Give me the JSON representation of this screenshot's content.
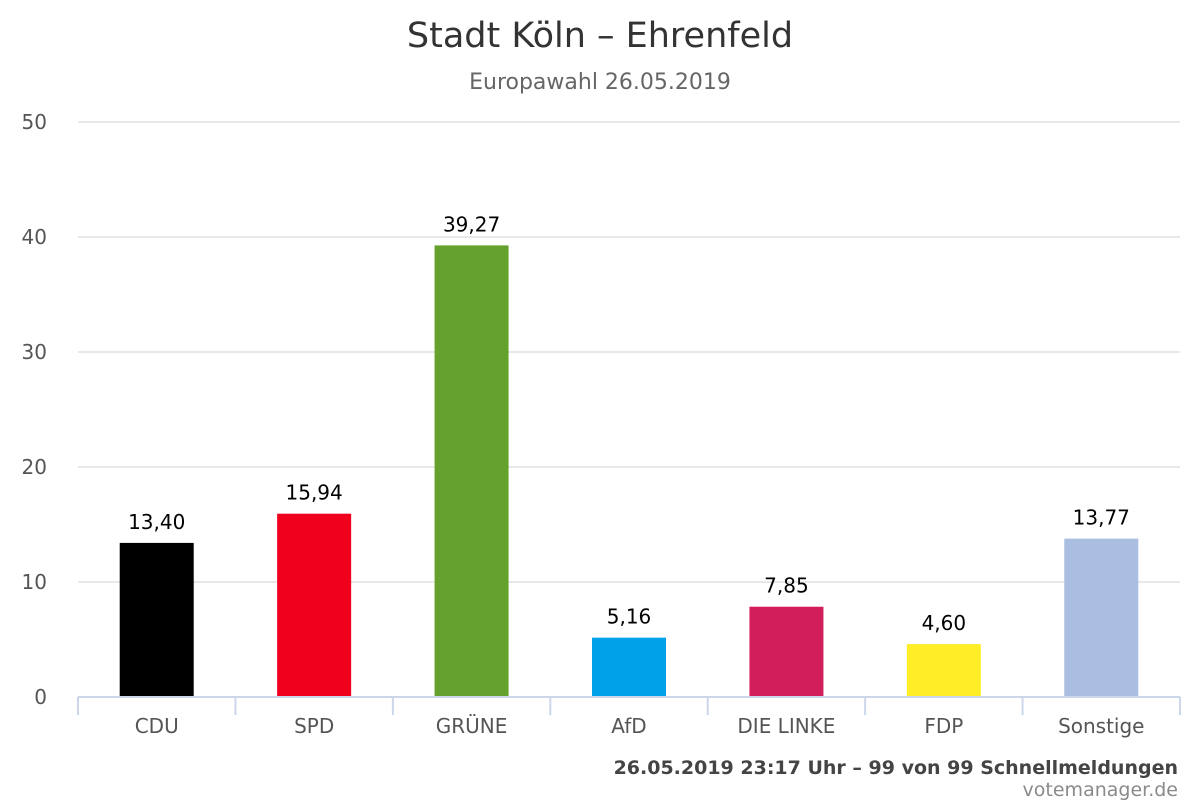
{
  "chart_data": {
    "type": "bar",
    "title": "Stadt Köln – Ehrenfeld",
    "subtitle": "Europawahl 26.05.2019",
    "categories": [
      "CDU",
      "SPD",
      "GRÜNE",
      "AfD",
      "DIE LINKE",
      "FDP",
      "Sonstige"
    ],
    "values": [
      13.4,
      15.94,
      39.27,
      5.16,
      7.85,
      4.6,
      13.77
    ],
    "value_labels": [
      "13,40",
      "15,94",
      "39,27",
      "5,16",
      "7,85",
      "4,60",
      "13,77"
    ],
    "colors": [
      "#000000",
      "#f0001c",
      "#64a12d",
      "#00a2e7",
      "#d21e5a",
      "#ffed28",
      "#aabee2"
    ],
    "ylim": [
      0,
      50
    ],
    "yticks": [
      "0",
      "10",
      "20",
      "30",
      "40",
      "50"
    ],
    "xlabel": "",
    "ylabel": "",
    "grid": true,
    "legend": "none"
  },
  "footer": {
    "status": "26.05.2019 23:17 Uhr – 99 von 99 Schnellmeldungen",
    "credit": "votemanager.de"
  }
}
